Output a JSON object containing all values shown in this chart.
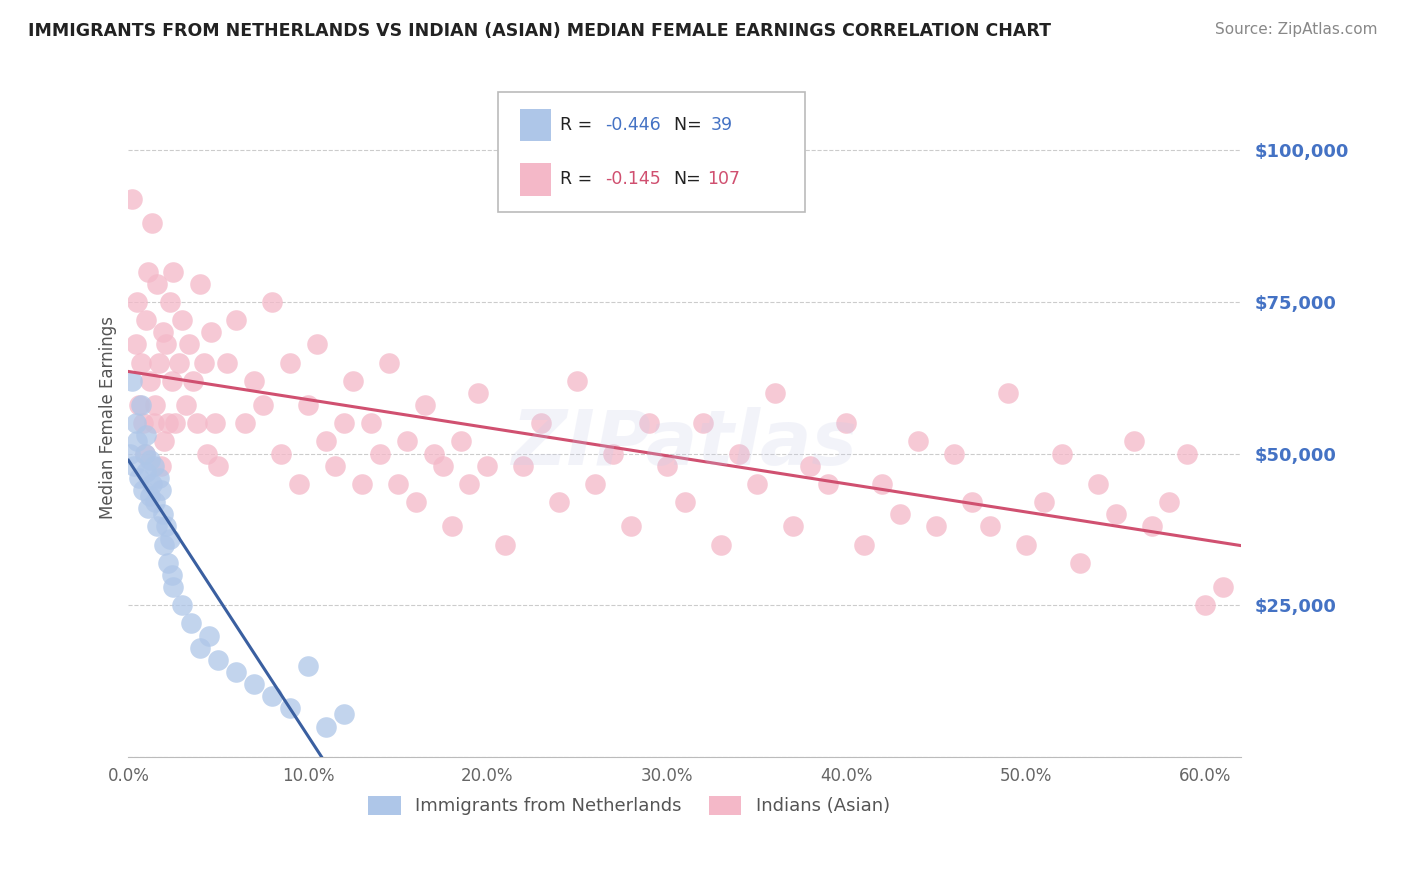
{
  "title": "IMMIGRANTS FROM NETHERLANDS VS INDIAN (ASIAN) MEDIAN FEMALE EARNINGS CORRELATION CHART",
  "source": "Source: ZipAtlas.com",
  "ylabel": "Median Female Earnings",
  "xlim": [
    0.0,
    0.62
  ],
  "ylim": [
    0,
    112000
  ],
  "yticks": [
    0,
    25000,
    50000,
    75000,
    100000
  ],
  "ytick_labels": [
    "",
    "$25,000",
    "$50,000",
    "$75,000",
    "$100,000"
  ],
  "xticks": [
    0.0,
    0.1,
    0.2,
    0.3,
    0.4,
    0.5,
    0.6
  ],
  "xtick_labels": [
    "0.0%",
    "10.0%",
    "20.0%",
    "30.0%",
    "40.0%",
    "50.0%",
    "60.0%"
  ],
  "legend_entries": [
    {
      "label": "Immigrants from Netherlands",
      "color": "#aec6e8"
    },
    {
      "label": "Indians (Asian)",
      "color": "#f4b8c8"
    }
  ],
  "r_netherlands": -0.446,
  "n_netherlands": 39,
  "r_indians": -0.145,
  "n_indians": 107,
  "color_netherlands": "#aec6e8",
  "color_indians": "#f4b8c8",
  "line_color_netherlands": "#3a5fa0",
  "line_color_indians": "#d05070",
  "text_color_blue": "#4472c4",
  "text_color_pink": "#d05070",
  "background_color": "#ffffff",
  "netherlands_x": [
    0.001,
    0.002,
    0.003,
    0.004,
    0.005,
    0.006,
    0.007,
    0.008,
    0.009,
    0.01,
    0.01,
    0.011,
    0.012,
    0.012,
    0.013,
    0.014,
    0.015,
    0.016,
    0.017,
    0.018,
    0.019,
    0.02,
    0.021,
    0.022,
    0.023,
    0.024,
    0.025,
    0.03,
    0.035,
    0.04,
    0.045,
    0.05,
    0.06,
    0.07,
    0.08,
    0.09,
    0.1,
    0.11,
    0.12
  ],
  "netherlands_y": [
    50000,
    62000,
    48000,
    55000,
    52000,
    46000,
    58000,
    44000,
    50000,
    53000,
    47000,
    41000,
    49000,
    43000,
    45000,
    48000,
    42000,
    38000,
    46000,
    44000,
    40000,
    35000,
    38000,
    32000,
    36000,
    30000,
    28000,
    25000,
    22000,
    18000,
    20000,
    16000,
    14000,
    12000,
    10000,
    8000,
    15000,
    5000,
    7000
  ],
  "indians_x": [
    0.002,
    0.004,
    0.005,
    0.006,
    0.007,
    0.008,
    0.009,
    0.01,
    0.011,
    0.012,
    0.013,
    0.014,
    0.015,
    0.016,
    0.017,
    0.018,
    0.019,
    0.02,
    0.021,
    0.022,
    0.023,
    0.024,
    0.025,
    0.026,
    0.028,
    0.03,
    0.032,
    0.034,
    0.036,
    0.038,
    0.04,
    0.042,
    0.044,
    0.046,
    0.048,
    0.05,
    0.055,
    0.06,
    0.065,
    0.07,
    0.075,
    0.08,
    0.085,
    0.09,
    0.095,
    0.1,
    0.105,
    0.11,
    0.115,
    0.12,
    0.125,
    0.13,
    0.135,
    0.14,
    0.145,
    0.15,
    0.155,
    0.16,
    0.165,
    0.17,
    0.175,
    0.18,
    0.185,
    0.19,
    0.195,
    0.2,
    0.21,
    0.22,
    0.23,
    0.24,
    0.25,
    0.26,
    0.27,
    0.28,
    0.29,
    0.3,
    0.31,
    0.32,
    0.33,
    0.34,
    0.35,
    0.36,
    0.37,
    0.38,
    0.39,
    0.4,
    0.41,
    0.42,
    0.43,
    0.44,
    0.45,
    0.46,
    0.47,
    0.48,
    0.49,
    0.5,
    0.51,
    0.52,
    0.53,
    0.54,
    0.55,
    0.56,
    0.57,
    0.58,
    0.59,
    0.6,
    0.61
  ],
  "indians_y": [
    92000,
    68000,
    75000,
    58000,
    65000,
    55000,
    50000,
    72000,
    80000,
    62000,
    88000,
    55000,
    58000,
    78000,
    65000,
    48000,
    70000,
    52000,
    68000,
    55000,
    75000,
    62000,
    80000,
    55000,
    65000,
    72000,
    58000,
    68000,
    62000,
    55000,
    78000,
    65000,
    50000,
    70000,
    55000,
    48000,
    65000,
    72000,
    55000,
    62000,
    58000,
    75000,
    50000,
    65000,
    45000,
    58000,
    68000,
    52000,
    48000,
    55000,
    62000,
    45000,
    55000,
    50000,
    65000,
    45000,
    52000,
    42000,
    58000,
    50000,
    48000,
    38000,
    52000,
    45000,
    60000,
    48000,
    35000,
    48000,
    55000,
    42000,
    62000,
    45000,
    50000,
    38000,
    55000,
    48000,
    42000,
    55000,
    35000,
    50000,
    45000,
    60000,
    38000,
    48000,
    45000,
    55000,
    35000,
    45000,
    40000,
    52000,
    38000,
    50000,
    42000,
    38000,
    60000,
    35000,
    42000,
    50000,
    32000,
    45000,
    40000,
    52000,
    38000,
    42000,
    50000,
    25000,
    28000
  ]
}
